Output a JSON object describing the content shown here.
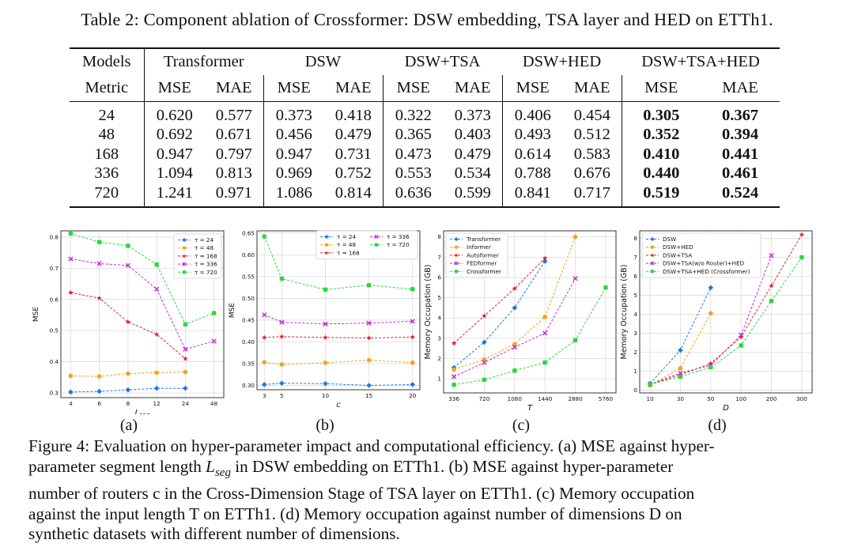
{
  "table": {
    "caption": "Table 2: Component ablation of Crossformer: DSW embedding, TSA layer and HED on ETTh1.",
    "models_label": "Models",
    "metric_label": "Metric",
    "groups": [
      "Transformer",
      "DSW",
      "DSW+TSA",
      "DSW+HED",
      "DSW+TSA+HED"
    ],
    "metrics": [
      "MSE",
      "MAE"
    ],
    "rows": [
      {
        "horizon": "24",
        "values": [
          "0.620",
          "0.577",
          "0.373",
          "0.418",
          "0.322",
          "0.373",
          "0.406",
          "0.454",
          "0.305",
          "0.367"
        ]
      },
      {
        "horizon": "48",
        "values": [
          "0.692",
          "0.671",
          "0.456",
          "0.479",
          "0.365",
          "0.403",
          "0.493",
          "0.512",
          "0.352",
          "0.394"
        ]
      },
      {
        "horizon": "168",
        "values": [
          "0.947",
          "0.797",
          "0.947",
          "0.731",
          "0.473",
          "0.479",
          "0.614",
          "0.583",
          "0.410",
          "0.441"
        ]
      },
      {
        "horizon": "336",
        "values": [
          "1.094",
          "0.813",
          "0.969",
          "0.752",
          "0.553",
          "0.534",
          "0.788",
          "0.676",
          "0.440",
          "0.461"
        ]
      },
      {
        "horizon": "720",
        "values": [
          "1.241",
          "0.971",
          "1.086",
          "0.814",
          "0.636",
          "0.599",
          "0.841",
          "0.717",
          "0.519",
          "0.524"
        ]
      }
    ]
  },
  "colors": {
    "blue": "#1f77e8",
    "orange": "#f5a31a",
    "red": "#e4202a",
    "magenta": "#c22ad6",
    "green": "#27d93a"
  },
  "chart_data": [
    {
      "type": "line",
      "sub_label": "(a)",
      "xlabel": "L_seg",
      "ylabel": "MSE",
      "categories": [
        "4",
        "6",
        "8",
        "12",
        "24",
        "48"
      ],
      "ylim": [
        0.285,
        0.82
      ],
      "yticks": [
        0.3,
        0.4,
        0.5,
        0.6,
        0.7,
        0.8
      ],
      "ytick_labels": [
        "0.3",
        "0.4",
        "0.5",
        "0.6",
        "0.7",
        "0.8"
      ],
      "legend": "top-right",
      "grid": true,
      "xpos": [
        0,
        1,
        2,
        3,
        4,
        5
      ],
      "series": [
        {
          "name": "τ = 24",
          "marker": "diamond",
          "values": [
            0.303,
            0.305,
            0.31,
            0.315,
            0.315,
            null
          ]
        },
        {
          "name": "τ = 48",
          "marker": "circle",
          "values": [
            0.355,
            0.353,
            0.362,
            0.365,
            0.367,
            null
          ]
        },
        {
          "name": "τ = 168",
          "marker": "star",
          "values": [
            0.622,
            0.604,
            0.528,
            0.488,
            0.41,
            null
          ]
        },
        {
          "name": "τ = 336",
          "marker": "x",
          "values": [
            0.73,
            0.715,
            0.709,
            0.633,
            0.44,
            0.466
          ]
        },
        {
          "name": "τ = 720",
          "marker": "square",
          "values": [
            0.811,
            0.784,
            0.772,
            0.712,
            0.52,
            0.556
          ]
        }
      ]
    },
    {
      "type": "line",
      "sub_label": "(b)",
      "xlabel": "c",
      "ylabel": "MSE",
      "categories": [
        "3",
        "5",
        "10",
        "15",
        "20"
      ],
      "ylim": [
        0.29,
        0.655
      ],
      "yticks": [
        0.3,
        0.35,
        0.4,
        0.45,
        0.5,
        0.55,
        0.6,
        0.65
      ],
      "ytick_labels": [
        "0.30",
        "0.35",
        "0.40",
        "0.45",
        "0.50",
        "0.55",
        "0.60",
        "0.65"
      ],
      "legend": "top-right",
      "grid": true,
      "xpos": [
        3,
        5,
        10,
        15,
        20
      ],
      "series": [
        {
          "name": "τ = 24",
          "marker": "diamond",
          "values": [
            0.302,
            0.305,
            0.304,
            0.3,
            0.302
          ]
        },
        {
          "name": "τ = 48",
          "marker": "circle",
          "values": [
            0.353,
            0.348,
            0.352,
            0.358,
            0.352
          ]
        },
        {
          "name": "τ = 168",
          "marker": "star",
          "values": [
            0.41,
            0.412,
            0.41,
            0.409,
            0.411
          ]
        },
        {
          "name": "τ = 336",
          "marker": "x",
          "values": [
            0.462,
            0.445,
            0.441,
            0.443,
            0.447
          ]
        },
        {
          "name": "τ = 720",
          "marker": "square",
          "values": [
            0.642,
            0.545,
            0.52,
            0.53,
            0.521
          ]
        }
      ]
    },
    {
      "type": "line",
      "sub_label": "(c)",
      "xlabel": "T",
      "ylabel": "Memory Occupation (GB)",
      "categories": [
        "336",
        "720",
        "1080",
        "1440",
        "2880",
        "5760"
      ],
      "ylim": [
        0.3,
        8.3
      ],
      "yticks": [
        1,
        2,
        3,
        4,
        5,
        6,
        7,
        8
      ],
      "ytick_labels": [
        "1",
        "2",
        "3",
        "4",
        "5",
        "6",
        "7",
        "8"
      ],
      "legend": "top-left",
      "grid": true,
      "xpos": [
        0,
        1,
        2,
        3,
        4,
        5
      ],
      "series": [
        {
          "name": "Transformer",
          "marker": "diamond",
          "values": [
            1.55,
            2.8,
            4.5,
            6.8,
            null,
            null
          ]
        },
        {
          "name": "Informer",
          "marker": "circle",
          "values": [
            1.45,
            1.95,
            2.7,
            4.05,
            8.0,
            null
          ]
        },
        {
          "name": "Autoformer",
          "marker": "star",
          "values": [
            2.75,
            4.1,
            5.45,
            6.95,
            null,
            null
          ]
        },
        {
          "name": "FEDformer",
          "marker": "x",
          "values": [
            1.1,
            1.8,
            2.55,
            3.25,
            5.95,
            null
          ]
        },
        {
          "name": "Crossformer",
          "marker": "square",
          "values": [
            0.7,
            0.95,
            1.4,
            1.8,
            2.9,
            5.5
          ]
        }
      ]
    },
    {
      "type": "line",
      "sub_label": "(d)",
      "xlabel": "D",
      "ylabel": "Memory Occupation (GB)",
      "categories": [
        "10",
        "30",
        "50",
        "100",
        "200",
        "300"
      ],
      "ylim": [
        -0.15,
        8.4
      ],
      "yticks": [
        0,
        1,
        2,
        3,
        4,
        5,
        6,
        7,
        8
      ],
      "ytick_labels": [
        "0",
        "1",
        "2",
        "3",
        "4",
        "5",
        "6",
        "7",
        "8"
      ],
      "legend": "top-left",
      "grid": true,
      "xpos": [
        0,
        1,
        2,
        3,
        4,
        5
      ],
      "series": [
        {
          "name": "DSW",
          "marker": "diamond",
          "values": [
            0.35,
            2.1,
            5.4,
            null,
            null,
            null
          ]
        },
        {
          "name": "DSW+HED",
          "marker": "circle",
          "values": [
            0.25,
            1.15,
            4.05,
            null,
            null,
            null
          ]
        },
        {
          "name": "DSW+TSA",
          "marker": "star",
          "values": [
            0.3,
            0.8,
            1.4,
            2.8,
            5.5,
            8.2
          ]
        },
        {
          "name": "DSW+TSA(w/o Router)+HED",
          "marker": "x",
          "values": [
            0.3,
            0.9,
            1.3,
            2.9,
            7.1,
            null
          ]
        },
        {
          "name": "DSW+TSA+HED (Crossformer)",
          "marker": "square",
          "values": [
            0.3,
            0.7,
            1.2,
            2.35,
            4.7,
            7.0
          ]
        }
      ]
    }
  ],
  "figure_caption": {
    "lines": [
      "Figure 4: Evaluation on hyper-parameter impact and computational efficiency. (a) MSE against hyper-",
      "parameter segment length L_seg in DSW embedding on ETTh1. (b) MSE against hyper-parameter",
      "number of routers c in the Cross-Dimension Stage of TSA layer on ETTh1. (c) Memory occupation",
      "against the input length T on ETTh1. (d) Memory occupation against number of dimensions D on",
      "synthetic datasets with different number of dimensions."
    ]
  }
}
